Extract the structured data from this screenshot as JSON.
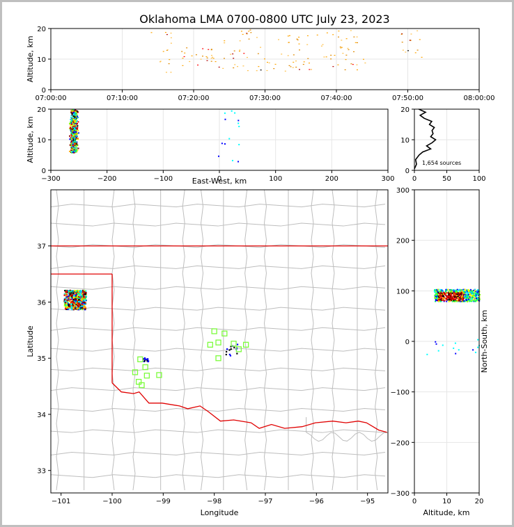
{
  "title": "Oklahoma LMA 0700-0800 UTC July 23, 2023",
  "colors": {
    "border_red": "#e00000",
    "county_gray": "#bdbdbd",
    "station_green": "#7cfc3c",
    "grid": "#e6e6e6",
    "frame_gray": "#bfbfbf"
  },
  "chart_data": [
    {
      "id": "time-height",
      "type": "scatter",
      "ylabel": "Altitude, km",
      "xlabel": "",
      "x_range": [
        "07:00:00",
        "08:00:00"
      ],
      "ylim": [
        0,
        20
      ],
      "x_ticks": [
        "07:00:00",
        "07:10:00",
        "07:20:00",
        "07:30:00",
        "07:40:00",
        "07:50:00",
        "08:00:00"
      ],
      "y_ticks": [
        "0",
        "10",
        "20"
      ],
      "grid": true,
      "clusters": [
        {
          "t_start": "07:14:00",
          "t_end": "07:17:00",
          "z_min": 5,
          "z_max": 20
        },
        {
          "t_start": "07:18:00",
          "t_end": "07:23:00",
          "z_min": 8,
          "z_max": 14
        },
        {
          "t_start": "07:23:00",
          "t_end": "07:29:00",
          "z_min": 6,
          "z_max": 20
        },
        {
          "t_start": "07:29:00",
          "t_end": "07:35:00",
          "z_min": 6,
          "z_max": 19
        },
        {
          "t_start": "07:35:00",
          "t_end": "07:44:00",
          "z_min": 6,
          "z_max": 20
        },
        {
          "t_start": "07:49:00",
          "t_end": "07:52:00",
          "z_min": 10,
          "z_max": 20
        }
      ]
    },
    {
      "id": "ew-height",
      "type": "scatter",
      "xlabel": "East-West, km",
      "ylabel": "Altitude, km",
      "xlim": [
        -300,
        300
      ],
      "ylim": [
        0,
        20
      ],
      "x_ticks": [
        "−300",
        "−200",
        "−100",
        "0",
        "100",
        "200",
        "300"
      ],
      "y_ticks": [
        "0",
        "10",
        "20"
      ],
      "grid": true,
      "clusters": [
        {
          "x_min": -268,
          "x_max": -245,
          "z_min": 6,
          "z_max": 20
        },
        {
          "x_min": -5,
          "x_max": 35,
          "z_min": 3,
          "z_max": 20
        }
      ]
    },
    {
      "id": "height-histogram",
      "type": "line",
      "xlim": [
        0,
        100
      ],
      "ylim": [
        0,
        20
      ],
      "x_ticks": [
        "0",
        "50",
        "100"
      ],
      "y_ticks": [
        "0",
        "10",
        "20"
      ],
      "annotation": "1,654 sources",
      "profile": [
        {
          "alt": 0.5,
          "count": 1
        },
        {
          "alt": 2,
          "count": 2
        },
        {
          "alt": 3.5,
          "count": 3
        },
        {
          "alt": 5,
          "count": 6
        },
        {
          "alt": 6,
          "count": 14
        },
        {
          "alt": 7,
          "count": 24
        },
        {
          "alt": 8,
          "count": 20
        },
        {
          "alt": 9,
          "count": 26
        },
        {
          "alt": 10,
          "count": 34
        },
        {
          "alt": 11,
          "count": 24
        },
        {
          "alt": 12,
          "count": 30
        },
        {
          "alt": 13,
          "count": 26
        },
        {
          "alt": 14,
          "count": 32
        },
        {
          "alt": 15,
          "count": 22
        },
        {
          "alt": 16,
          "count": 28
        },
        {
          "alt": 17,
          "count": 14
        },
        {
          "alt": 18,
          "count": 10
        },
        {
          "alt": 19,
          "count": 16
        },
        {
          "alt": 20,
          "count": 8
        }
      ]
    },
    {
      "id": "plan-view",
      "type": "scatter",
      "xlabel": "Longitude",
      "ylabel": "Latitude",
      "xlim": [
        -101.2,
        -94.6
      ],
      "ylim": [
        32.6,
        38.0
      ],
      "x_ticks": [
        "−101",
        "−100",
        "−99",
        "−98",
        "−97",
        "−96",
        "−95"
      ],
      "y_ticks": [
        "33",
        "34",
        "35",
        "36",
        "37"
      ],
      "stations": [
        {
          "lon": -98.0,
          "lat": 35.48
        },
        {
          "lon": -97.8,
          "lat": 35.44
        },
        {
          "lon": -98.08,
          "lat": 35.24
        },
        {
          "lon": -97.92,
          "lat": 35.28
        },
        {
          "lon": -97.62,
          "lat": 35.26
        },
        {
          "lon": -97.52,
          "lat": 35.16
        },
        {
          "lon": -97.38,
          "lat": 35.24
        },
        {
          "lon": -97.92,
          "lat": 35.0
        },
        {
          "lon": -99.45,
          "lat": 34.98
        },
        {
          "lon": -99.35,
          "lat": 34.84
        },
        {
          "lon": -99.55,
          "lat": 34.75
        },
        {
          "lon": -99.32,
          "lat": 34.69
        },
        {
          "lon": -99.48,
          "lat": 34.58
        },
        {
          "lon": -99.42,
          "lat": 34.52
        },
        {
          "lon": -99.08,
          "lat": 34.7
        }
      ],
      "clusters": [
        {
          "lon_min": -100.95,
          "lon_max": -100.52,
          "lat_min": 35.88,
          "lat_max": 36.22
        },
        {
          "lon_min": -99.4,
          "lon_max": -99.3,
          "lat_min": 34.95,
          "lat_max": 35.02
        },
        {
          "lon_min": -97.8,
          "lon_max": -97.55,
          "lat_min": 35.05,
          "lat_max": 35.35
        }
      ]
    },
    {
      "id": "height-ns",
      "type": "scatter",
      "xlabel": "Altitude, km",
      "ylabel": "North-South, km",
      "xlim": [
        0,
        20
      ],
      "ylim": [
        -300,
        300
      ],
      "x_ticks": [
        "0",
        "10",
        "20"
      ],
      "y_ticks": [
        "−300",
        "−200",
        "−100",
        "0",
        "100",
        "200",
        "300"
      ],
      "grid": true,
      "clusters": [
        {
          "z_min": 6,
          "z_max": 20,
          "y_min": 80,
          "y_max": 104
        },
        {
          "z_min": 2,
          "z_max": 20,
          "y_min": -25,
          "y_max": 5
        }
      ]
    }
  ]
}
